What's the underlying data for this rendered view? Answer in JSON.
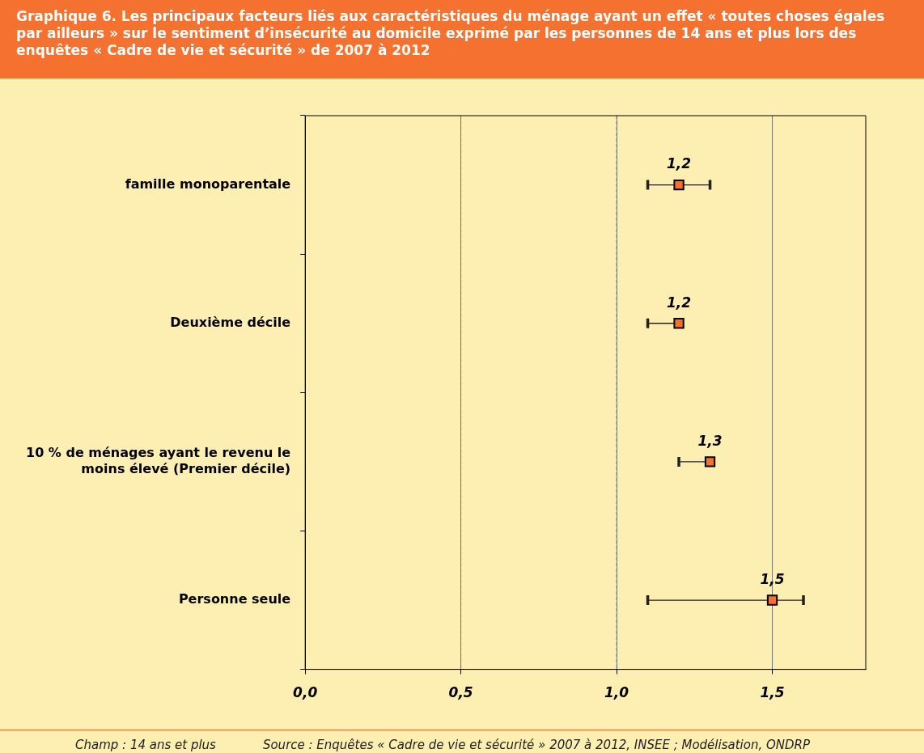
{
  "chart_data": {
    "type": "scatter",
    "orientation": "horizontal",
    "title": "Graphique 6. Les principaux facteurs liés aux caractéristiques du ménage ayant un effet « toutes choses égales par ailleurs » sur le sentiment d’insécurité au domicile exprimé par les personnes de 14 ans et plus lors des enquêtes « Cadre de vie et sécurité » de 2007 à 2012",
    "categories": [
      "famille monoparentale",
      "Deuxième décile",
      "10 % de ménages ayant le revenu le moins élevé (Premier décile)",
      "Personne seule"
    ],
    "values": [
      1.2,
      1.2,
      1.3,
      1.5
    ],
    "errors": [
      [
        1.1,
        1.3
      ],
      [
        1.1,
        1.2
      ],
      [
        1.2,
        1.3
      ],
      [
        1.1,
        1.6
      ]
    ],
    "value_labels": [
      "1,2",
      "1,2",
      "1,3",
      "1,5"
    ],
    "color": "#f47130",
    "marker": "square",
    "xlim": [
      0,
      1.8
    ],
    "xticks": [
      {
        "value": 0,
        "label": "0,0"
      },
      {
        "value": 0.5,
        "label": "0,5"
      },
      {
        "value": 1,
        "label": "1,0"
      },
      {
        "value": 1.5,
        "label": "1,5"
      }
    ],
    "grid": "x",
    "legend": false,
    "annotations": [
      "Champ : 14 ans et plus",
      "Source : Enquêtes « Cadre de vie et sécurité » 2007 à 2012, INSEE ; Modélisation, ONDRP"
    ]
  }
}
